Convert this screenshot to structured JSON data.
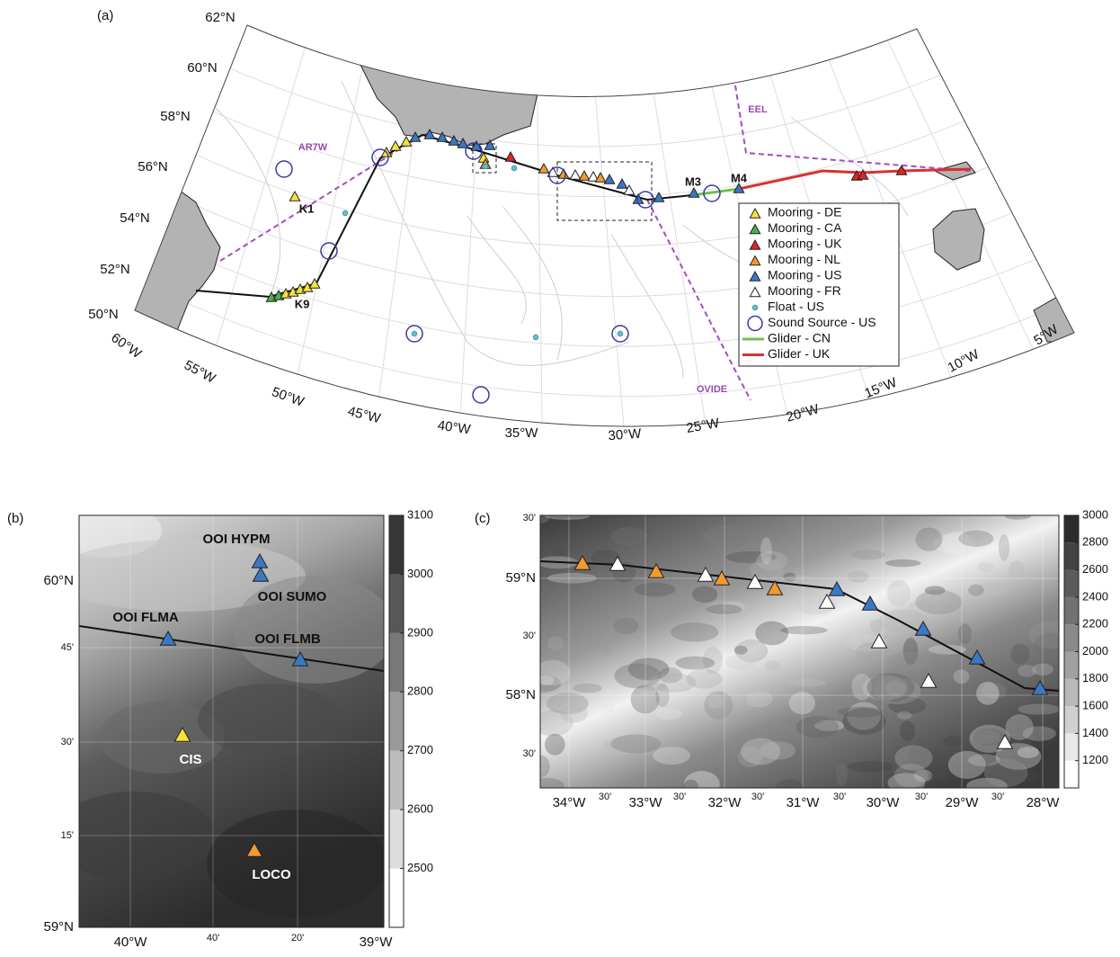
{
  "panel_a": {
    "label": "(a)",
    "lat_labels": [
      "62°N",
      "60°N",
      "58°N",
      "56°N",
      "54°N",
      "52°N",
      "50°N"
    ],
    "lon_labels": [
      "60°W",
      "55°W",
      "50°W",
      "45°W",
      "40°W",
      "35°W",
      "30°W",
      "25°W",
      "20°W",
      "15°W",
      "10°W",
      "5°W"
    ],
    "sections": [
      "AR7W",
      "EEL",
      "OVIDE"
    ],
    "sites": [
      "K1",
      "K9",
      "M3",
      "M4"
    ],
    "legend": [
      {
        "label": "Mooring - DE",
        "marker": "triangle",
        "color": "#f6e43a"
      },
      {
        "label": "Mooring - CA",
        "marker": "triangle",
        "color": "#4bae4f"
      },
      {
        "label": "Mooring - UK",
        "marker": "triangle",
        "color": "#e02424"
      },
      {
        "label": "Mooring - NL",
        "marker": "triangle",
        "color": "#f29a2e"
      },
      {
        "label": "Mooring - US",
        "marker": "triangle",
        "color": "#3b78c4"
      },
      {
        "label": "Mooring - FR",
        "marker": "triangle",
        "color": "#ffffff"
      },
      {
        "label": "Float - US",
        "marker": "dot",
        "color": "#4fc3d9"
      },
      {
        "label": "Sound Source - US",
        "marker": "circle",
        "color": "#3a3aa0"
      },
      {
        "label": "Glider - CN",
        "marker": "line",
        "color": "#6cc24a"
      },
      {
        "label": "Glider - UK",
        "marker": "line",
        "color": "#d93030"
      }
    ]
  },
  "panel_b": {
    "label": "(b)",
    "sites": [
      "OOI HYPM",
      "OOI SUMO",
      "OOI FLMA",
      "OOI FLMB",
      "CIS",
      "LOCO"
    ],
    "lat_labels": [
      "60°N",
      "45'",
      "30'",
      "15'",
      "59°N"
    ],
    "lon_labels": [
      "40°W",
      "40'",
      "20'",
      "39°W"
    ],
    "colorbar": {
      "lim": [
        2400,
        3100
      ],
      "ticks": [
        2500,
        2600,
        2700,
        2800,
        2900,
        3000,
        3100
      ]
    }
  },
  "panel_c": {
    "label": "(c)",
    "lat_labels": [
      "30'",
      "59°N",
      "30'",
      "58°N",
      "30'"
    ],
    "lon_labels": [
      "34°W",
      "30'",
      "33°W",
      "30'",
      "32°W",
      "30'",
      "31°W",
      "30'",
      "30°W",
      "30'",
      "29°W",
      "30'",
      "28°W"
    ],
    "colorbar": {
      "lim": [
        1000,
        3000
      ],
      "ticks": [
        1200,
        1400,
        1600,
        1800,
        2000,
        2200,
        2400,
        2600,
        2800,
        3000
      ]
    }
  }
}
